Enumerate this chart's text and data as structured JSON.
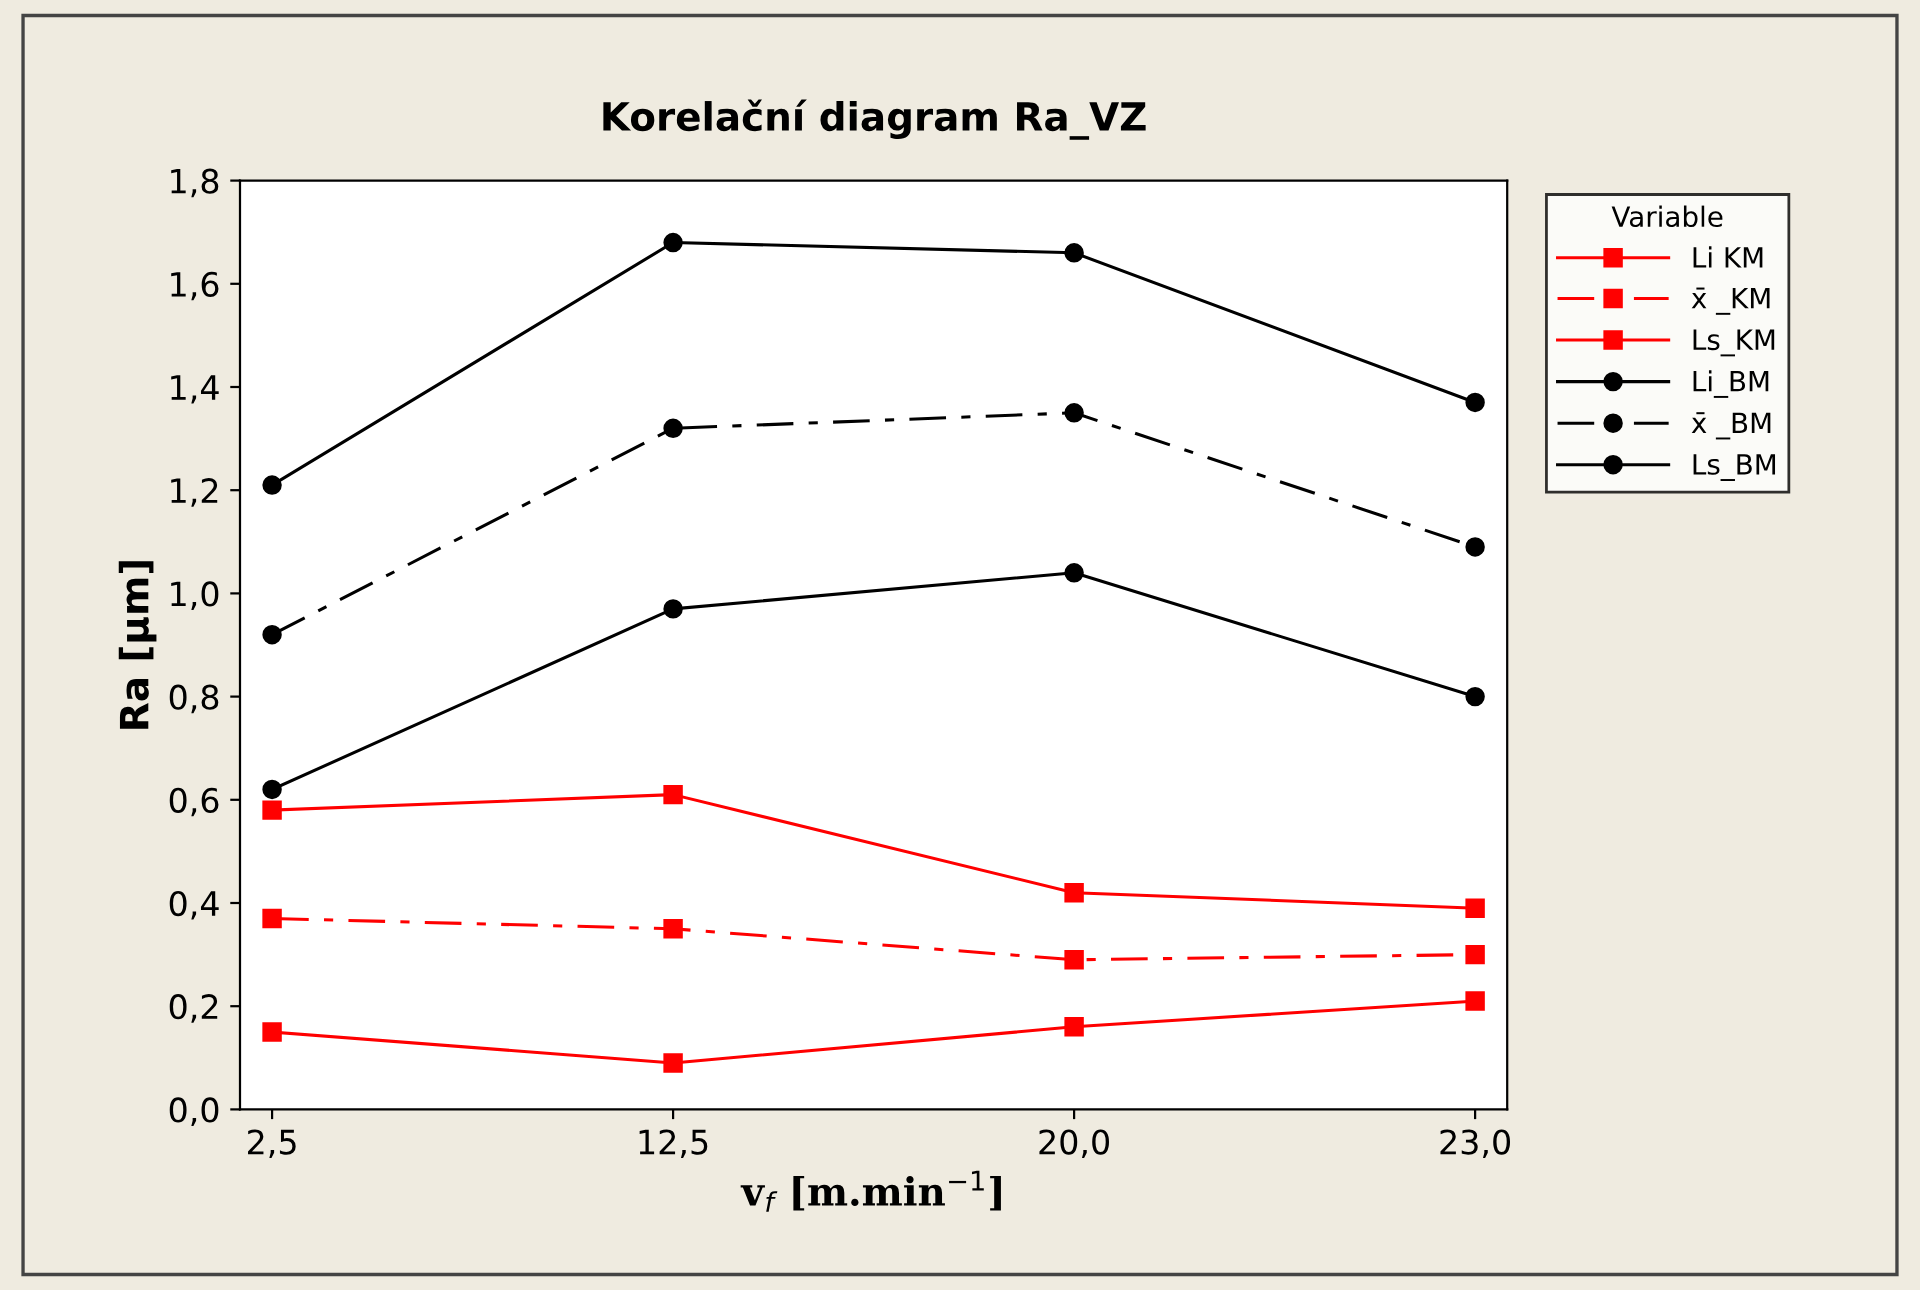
{
  "chart_data": {
    "type": "line",
    "title": "Korelační diagram Ra_VZ",
    "xlabel": "v$_{f}$ [m.min$^{−1}$]",
    "ylabel": "Ra [µm]",
    "legend_title": "Variable",
    "categories": [
      "2,5",
      "12,5",
      "20,0",
      "23,0"
    ],
    "ylim": [
      0,
      1.8
    ],
    "yticks": [
      {
        "value": 0,
        "label": "0,0"
      },
      {
        "value": 0.2,
        "label": "0,2"
      },
      {
        "value": 0.4,
        "label": "0,4"
      },
      {
        "value": 0.6,
        "label": "0,6"
      },
      {
        "value": 0.8,
        "label": "0,8"
      },
      {
        "value": 1.0,
        "label": "1,0"
      },
      {
        "value": 1.2,
        "label": "1,2"
      },
      {
        "value": 1.4,
        "label": "1,4"
      },
      {
        "value": 1.6,
        "label": "1,6"
      },
      {
        "value": 1.8,
        "label": "1,8"
      }
    ],
    "legend": "right",
    "grid": false,
    "series": [
      {
        "name": "Li KM",
        "color": "#ff0000",
        "marker": "square",
        "line_style": "solid",
        "values": [
          0.15,
          0.09,
          0.16,
          0.21
        ]
      },
      {
        "name": "x̄ _KM",
        "color": "#ff0000",
        "marker": "square",
        "line_style": "dashdot",
        "values": [
          0.37,
          0.35,
          0.29,
          0.3
        ]
      },
      {
        "name": "Ls_KM",
        "color": "#ff0000",
        "marker": "square",
        "line_style": "solid",
        "values": [
          0.58,
          0.61,
          0.42,
          0.39
        ]
      },
      {
        "name": "Li_BM",
        "color": "#000000",
        "marker": "circle",
        "line_style": "solid",
        "values": [
          0.62,
          0.97,
          1.04,
          0.8
        ]
      },
      {
        "name": "x̄ _BM",
        "color": "#000000",
        "marker": "circle",
        "line_style": "dashdot",
        "values": [
          0.92,
          1.32,
          1.35,
          1.09
        ]
      },
      {
        "name": "Ls_BM",
        "color": "#000000",
        "marker": "circle",
        "line_style": "solid",
        "values": [
          1.21,
          1.68,
          1.66,
          1.37
        ]
      }
    ]
  }
}
